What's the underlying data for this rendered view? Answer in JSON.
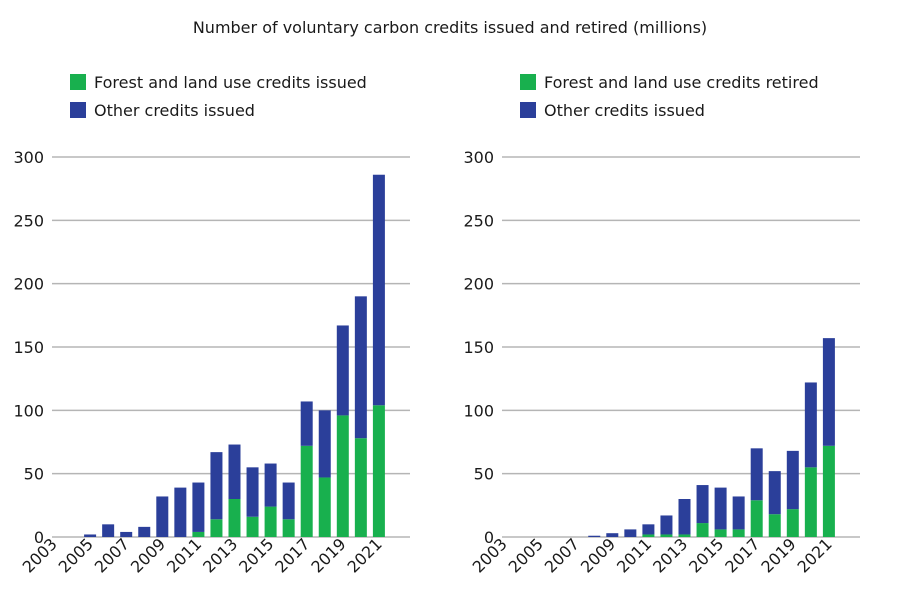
{
  "title": "Number of voluntary carbon credits issued and retired (millions)",
  "colors": {
    "forest": "#18b04e",
    "other": "#2b3f9a",
    "grid": "#b5b5b5"
  },
  "chart_data": [
    {
      "type": "bar",
      "stacked": true,
      "legend": [
        "Forest and land use credits issued",
        "Other credits issued"
      ],
      "x": [
        2003,
        2004,
        2005,
        2006,
        2007,
        2008,
        2009,
        2010,
        2011,
        2012,
        2013,
        2014,
        2015,
        2016,
        2017,
        2018,
        2019,
        2020,
        2021
      ],
      "tick_labels": [
        "2003",
        "2005",
        "2007",
        "2009",
        "2011",
        "2013",
        "2015",
        "2017",
        "2019",
        "2021"
      ],
      "yticks": [
        "0",
        "50",
        "100",
        "150",
        "200",
        "250",
        "300"
      ],
      "ylim": [
        0,
        300
      ],
      "series": [
        {
          "name": "Forest and land use credits issued",
          "values": [
            0,
            0,
            0,
            0,
            0,
            0,
            0,
            0,
            4,
            14,
            30,
            16,
            24,
            14,
            72,
            47,
            96,
            78,
            104
          ]
        },
        {
          "name": "Other credits issued",
          "values": [
            0,
            0,
            2,
            10,
            4,
            8,
            32,
            39,
            39,
            53,
            43,
            39,
            34,
            29,
            35,
            53,
            71,
            112,
            182
          ]
        }
      ]
    },
    {
      "type": "bar",
      "stacked": true,
      "legend": [
        "Forest and land use credits retired",
        "Other credits issued"
      ],
      "x": [
        2003,
        2004,
        2005,
        2006,
        2007,
        2008,
        2009,
        2010,
        2011,
        2012,
        2013,
        2014,
        2015,
        2016,
        2017,
        2018,
        2019,
        2020,
        2021
      ],
      "tick_labels": [
        "2003",
        "2005",
        "2007",
        "2009",
        "2011",
        "2013",
        "2015",
        "2017",
        "2019",
        "2021"
      ],
      "yticks": [
        "0",
        "50",
        "100",
        "150",
        "200",
        "250",
        "300"
      ],
      "ylim": [
        0,
        300
      ],
      "series": [
        {
          "name": "Forest and land use credits retired",
          "values": [
            0,
            0,
            0,
            0,
            0,
            0,
            0,
            0,
            2,
            2,
            2,
            11,
            6,
            6,
            29,
            18,
            22,
            55,
            72
          ]
        },
        {
          "name": "Other credits issued",
          "values": [
            0,
            0,
            0,
            0,
            0,
            1,
            3,
            6,
            8,
            15,
            28,
            30,
            33,
            26,
            41,
            34,
            46,
            67,
            85
          ]
        }
      ]
    }
  ]
}
